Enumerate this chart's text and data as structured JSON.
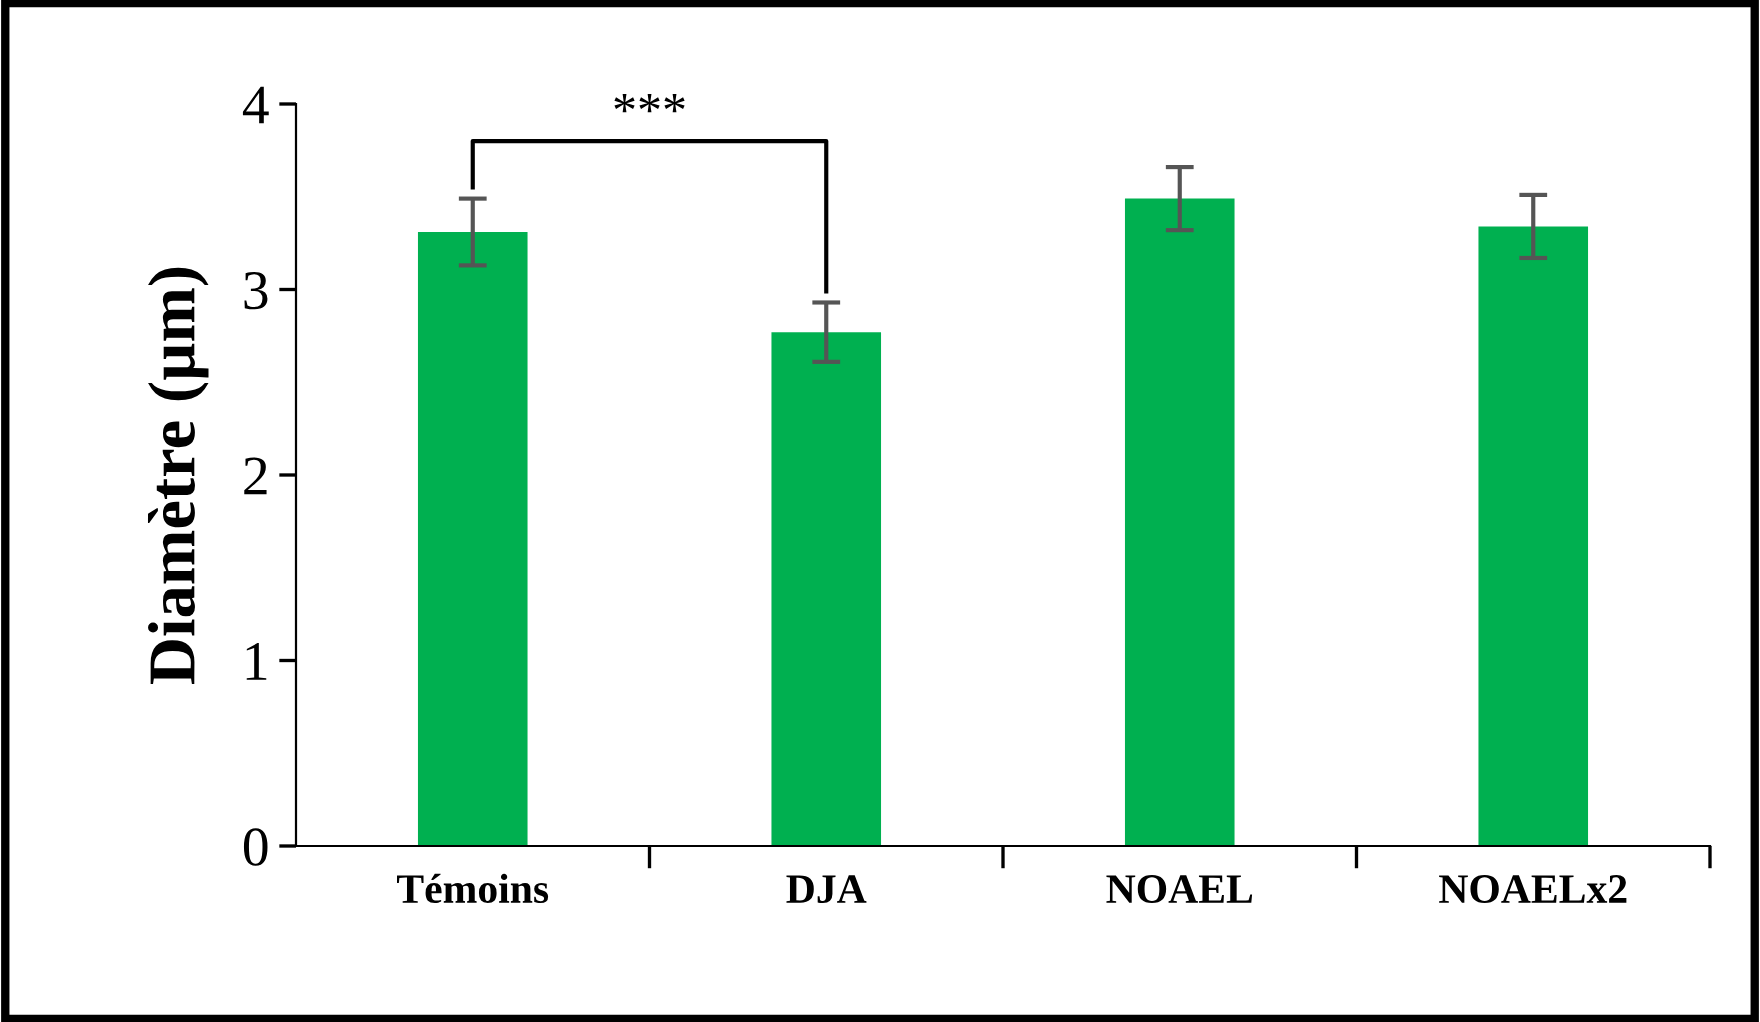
{
  "chart_data": {
    "type": "bar",
    "ylabel": "Diamètre (µm)",
    "categories": [
      "Témoins",
      "DJA",
      "NOAEL",
      "NOAELx2"
    ],
    "values": [
      3.31,
      2.77,
      3.49,
      3.34
    ],
    "errors": [
      0.18,
      0.16,
      0.17,
      0.17
    ],
    "color": "#00b050",
    "ylim": [
      0,
      4
    ],
    "yticks": [
      0,
      1,
      2,
      3,
      4
    ],
    "grid": false,
    "legend": false,
    "annotations": [
      "***"
    ]
  }
}
